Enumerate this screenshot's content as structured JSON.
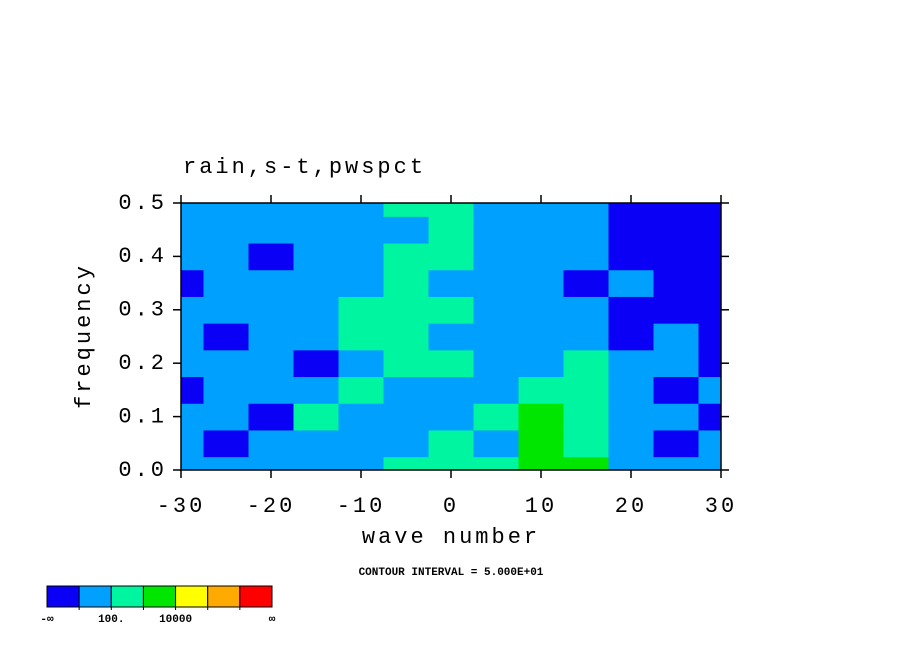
{
  "chart_data": {
    "type": "contour",
    "title": "rain,s-t,pwspct",
    "xlabel": "wave number",
    "ylabel": "frequency",
    "note": "CONTOUR INTERVAL = 5.000E+01",
    "x": [
      -30,
      -25,
      -20,
      -15,
      -10,
      -5,
      0,
      5,
      10,
      15,
      20,
      25,
      30
    ],
    "y": [
      0,
      0.05,
      0.1,
      0.15,
      0.2,
      0.25,
      0.3,
      0.35,
      0.4,
      0.45,
      0.5
    ],
    "z": [
      [
        50,
        50,
        50,
        50,
        50,
        200,
        200,
        200,
        2000,
        2000,
        50,
        50,
        50
      ],
      [
        50,
        5,
        50,
        50,
        50,
        50,
        200,
        50,
        2000,
        200,
        50,
        5,
        50
      ],
      [
        50,
        50,
        5,
        200,
        50,
        50,
        50,
        200,
        2000,
        200,
        50,
        50,
        5
      ],
      [
        5,
        50,
        50,
        50,
        200,
        50,
        50,
        50,
        200,
        200,
        50,
        5,
        50
      ],
      [
        50,
        50,
        50,
        5,
        50,
        200,
        200,
        50,
        50,
        200,
        50,
        50,
        5
      ],
      [
        50,
        5,
        50,
        50,
        200,
        200,
        50,
        50,
        50,
        50,
        5,
        50,
        5
      ],
      [
        50,
        50,
        50,
        50,
        200,
        200,
        200,
        50,
        50,
        50,
        5,
        5,
        5
      ],
      [
        5,
        50,
        50,
        50,
        50,
        200,
        50,
        50,
        50,
        5,
        50,
        5,
        5
      ],
      [
        50,
        50,
        5,
        50,
        50,
        200,
        200,
        50,
        50,
        50,
        5,
        5,
        5
      ],
      [
        50,
        50,
        50,
        50,
        50,
        50,
        200,
        50,
        50,
        50,
        5,
        5,
        5
      ],
      [
        50,
        50,
        50,
        50,
        50,
        200,
        200,
        50,
        50,
        50,
        5,
        5,
        5
      ]
    ],
    "xlim": [
      -30,
      30
    ],
    "ylim": [
      0,
      0.5
    ],
    "xticks": [
      -30,
      -20,
      -10,
      0,
      10,
      20,
      30
    ],
    "yticks": [
      {
        "value": 0,
        "label": "0.0"
      },
      0.1,
      0.2,
      0.3,
      0.4,
      0.5
    ],
    "colorbar": {
      "colors": [
        "#0a00f5",
        "#00a0ff",
        "#00f5a0",
        "#00e600",
        "#ffff00",
        "#ffaa00",
        "#ff0000"
      ],
      "levels": [
        10,
        100,
        1000,
        10000,
        100000,
        1000000
      ],
      "level_labels": [
        null,
        "100.",
        null,
        "10000",
        null,
        null
      ],
      "low_label": "-∞",
      "high_label": "∞"
    }
  }
}
